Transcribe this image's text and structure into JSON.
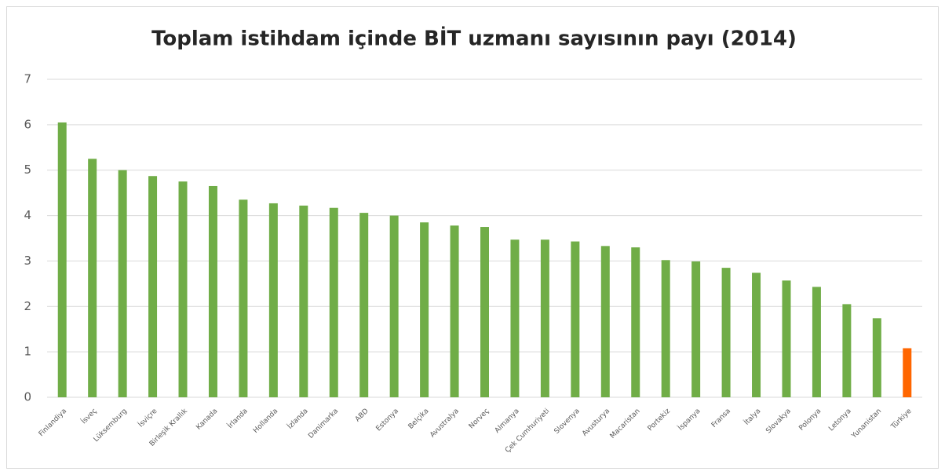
{
  "chart_data": {
    "type": "bar",
    "title": "Toplam istihdam içinde BİT uzmanı sayısının payı (2014)",
    "categories": [
      "Finlandiya",
      "İsveç",
      "Lüksemburg",
      "İsviçre",
      "Birleşik Krallık",
      "Kanada",
      "İrlanda",
      "Hollanda",
      "İzlanda",
      "Danimarka",
      "ABD",
      "Estonya",
      "Belçika",
      "Avustralya",
      "Norveç",
      "Almanya",
      "Çek Cumhuriyeti",
      "Slovenya",
      "Avusturya",
      "Macaristan",
      "Portekiz",
      "İspanya",
      "Fransa",
      "İtalya",
      "Slovakya",
      "Polonya",
      "Letonya",
      "Yunanistan",
      "Türkiye"
    ],
    "values": [
      6.05,
      5.25,
      5.0,
      4.87,
      4.75,
      4.65,
      4.35,
      4.27,
      4.22,
      4.17,
      4.06,
      4.0,
      3.85,
      3.78,
      3.75,
      3.47,
      3.47,
      3.43,
      3.33,
      3.3,
      3.02,
      2.99,
      2.85,
      2.74,
      2.57,
      2.43,
      2.05,
      1.74,
      1.08
    ],
    "colors": [
      "#70ad47",
      "#70ad47",
      "#70ad47",
      "#70ad47",
      "#70ad47",
      "#70ad47",
      "#70ad47",
      "#70ad47",
      "#70ad47",
      "#70ad47",
      "#70ad47",
      "#70ad47",
      "#70ad47",
      "#70ad47",
      "#70ad47",
      "#70ad47",
      "#70ad47",
      "#70ad47",
      "#70ad47",
      "#70ad47",
      "#70ad47",
      "#70ad47",
      "#70ad47",
      "#70ad47",
      "#70ad47",
      "#70ad47",
      "#70ad47",
      "#70ad47",
      "#ff6600"
    ],
    "ylim": [
      0,
      7
    ],
    "yticks": [
      0,
      1,
      2,
      3,
      4,
      5,
      6,
      7
    ],
    "grid": true
  }
}
